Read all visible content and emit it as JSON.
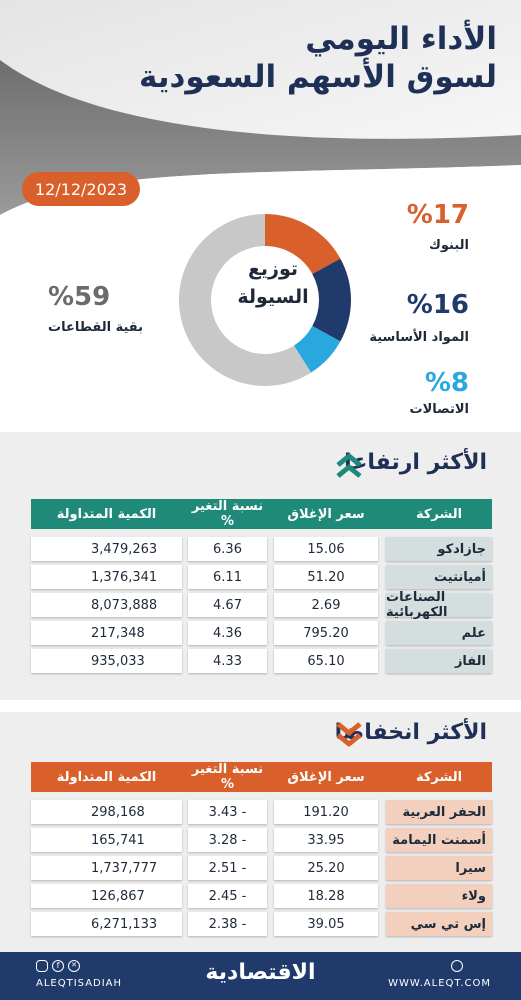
{
  "header": {
    "title_line1": "الأداء اليومي",
    "title_line2": "لسوق الأسهم السعودية",
    "date": "12/12/2023"
  },
  "liquidity": {
    "center_line1": "توزيع",
    "center_line2": "السيولة",
    "segments": [
      {
        "label": "البنوك",
        "pct_text": "%17",
        "value": 17,
        "color": "#d95f2b"
      },
      {
        "label": "المواد الأساسية",
        "pct_text": "%16",
        "value": 16,
        "color": "#1f3a6b"
      },
      {
        "label": "الاتصالات",
        "pct_text": "%8",
        "value": 8,
        "color": "#29a8e0"
      },
      {
        "label": "بقية القطاعات",
        "pct_text": "%59",
        "value": 59,
        "color": "#c8c8c8"
      }
    ]
  },
  "gainers": {
    "title": "الأكثر ارتفاعا",
    "header_color": "#1f8a7a",
    "name_bg": "#d5dede",
    "columns": {
      "company": "الشركة",
      "close": "سعر الإغلاق",
      "change": "نسبة التغير %",
      "volume": "الكمية المتداولة"
    },
    "rows": [
      {
        "company": "جازادكو",
        "close": "15.06",
        "change": "6.36",
        "volume": "3,479,263"
      },
      {
        "company": "أميانتيت",
        "close": "51.20",
        "change": "6.11",
        "volume": "1,376,341"
      },
      {
        "company": "الصناعات الكهربائية",
        "close": "2.69",
        "change": "4.67",
        "volume": "8,073,888"
      },
      {
        "company": "علم",
        "close": "795.20",
        "change": "4.36",
        "volume": "217,348"
      },
      {
        "company": "الفاز",
        "close": "65.10",
        "change": "4.33",
        "volume": "935,033"
      }
    ]
  },
  "losers": {
    "title": "الأكثر انخفاضا",
    "header_color": "#d95f2b",
    "name_bg": "#f3d0bd",
    "columns": {
      "company": "الشركة",
      "close": "سعر الإغلاق",
      "change": "نسبة التغير %",
      "volume": "الكمية المتداولة"
    },
    "rows": [
      {
        "company": "الحفر العربية",
        "close": "191.20",
        "change": "3.43 -",
        "volume": "298,168"
      },
      {
        "company": "أسمنت اليمامة",
        "close": "33.95",
        "change": "3.28 -",
        "volume": "165,741"
      },
      {
        "company": "سيرا",
        "close": "25.20",
        "change": "2.51 -",
        "volume": "1,737,777"
      },
      {
        "company": "ولاء",
        "close": "18.28",
        "change": "2.45 -",
        "volume": "126,867"
      },
      {
        "company": "إس تي سي",
        "close": "39.05",
        "change": "2.38 -",
        "volume": "6,271,133"
      }
    ]
  },
  "footer": {
    "handle": "ALEQTISADIAH",
    "brand": "الاقتصادية",
    "site": "WWW.ALEQT.COM",
    "icons": [
      "instagram-icon",
      "facebook-icon",
      "x-icon",
      "website-icon"
    ]
  }
}
